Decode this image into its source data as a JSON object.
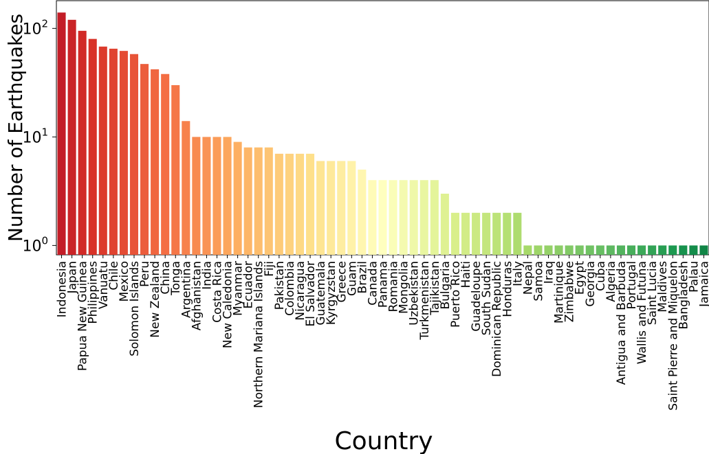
{
  "chart_data": {
    "type": "bar",
    "title": "",
    "xlabel": "Country",
    "ylabel": "Number of Earthquakes",
    "yscale": "log",
    "ylim": [
      0.82,
      180
    ],
    "yticks": [
      {
        "value": 1,
        "label": "10",
        "exp": "0"
      },
      {
        "value": 10,
        "label": "10",
        "exp": "1"
      },
      {
        "value": 100,
        "label": "10",
        "exp": "2"
      }
    ],
    "grid": false,
    "legend": "none",
    "colormap": "RdYlGn",
    "categories": [
      "Indonesia",
      "Japan",
      "Papua New Guinea",
      "Philippines",
      "Vanuatu",
      "Chile",
      "Mexico",
      "Solomon Islands",
      "Peru",
      "New Zealand",
      "China",
      "Tonga",
      "Argentina",
      "Afghanistan",
      "India",
      "Costa Rica",
      "New Caledonia",
      "Myanmar",
      "Ecuador",
      "Northern Mariana Islands",
      "Fiji",
      "Pakistan",
      "Colombia",
      "Nicaragua",
      "El Salvador",
      "Guatemala",
      "Kyrgyzstan",
      "Greece",
      "Guam",
      "Brazil",
      "Canada",
      "Panama",
      "Romania",
      "Mongolia",
      "Uzbekistan",
      "Turkmenistan",
      "Tajikistan",
      "Bulgaria",
      "Puerto Rico",
      "Haiti",
      "Guadeloupe",
      "South Sudan",
      "Dominican Republic",
      "Honduras",
      "Italy",
      "Nepal",
      "Samoa",
      "Iraq",
      "Martinique",
      "Zimbabwe",
      "Egypt",
      "Georgia",
      "Cuba",
      "Algeria",
      "Antigua and Barbuda",
      "Portugal",
      "Wallis and Futuna",
      "Saint Lucia",
      "Maldives",
      "Saint Pierre and Miquelon",
      "Bangladesh",
      "Palau",
      "Jamaica"
    ],
    "values": [
      140,
      120,
      95,
      80,
      68,
      65,
      62,
      58,
      47,
      42,
      38,
      30,
      14,
      10,
      10,
      10,
      10,
      9,
      8,
      8,
      8,
      7,
      7,
      7,
      7,
      6,
      6,
      6,
      6,
      5,
      4,
      4,
      4,
      4,
      4,
      4,
      4,
      3,
      2,
      2,
      2,
      2,
      2,
      2,
      2,
      1,
      1,
      1,
      1,
      1,
      1,
      1,
      1,
      1,
      1,
      1,
      1,
      1,
      1,
      1,
      1,
      1,
      1
    ]
  }
}
